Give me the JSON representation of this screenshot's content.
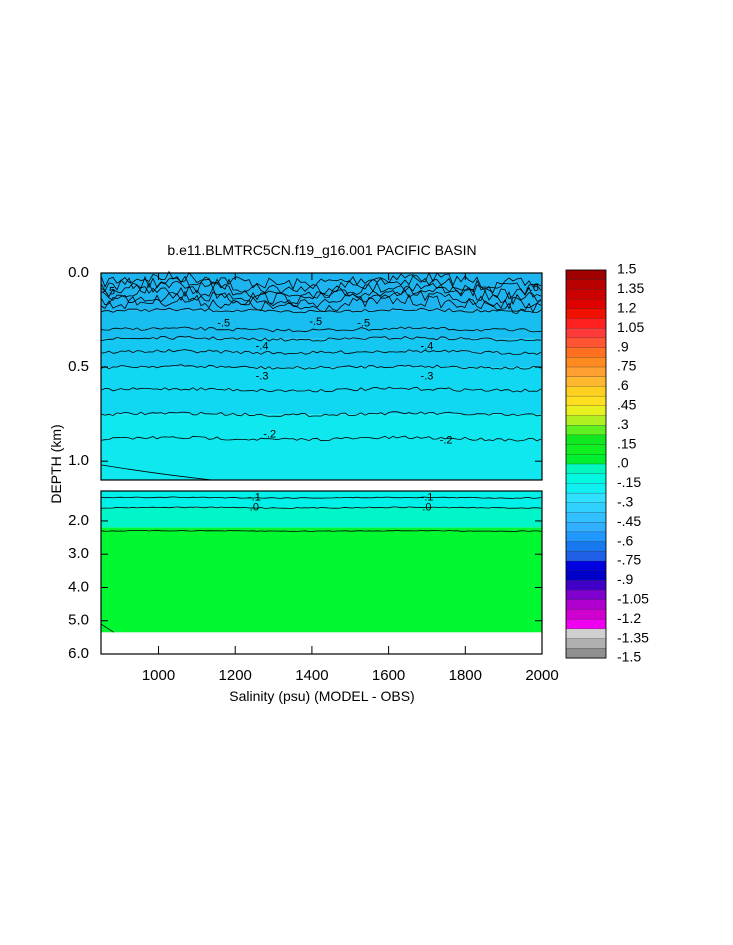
{
  "chart_data": {
    "type": "heatmap",
    "title": "b.e11.BLMTRC5CN.f19_g16.001 PACIFIC BASIN",
    "xlabel": "Salinity (psu) (MODEL - OBS)",
    "ylabel": "DEPTH (km)",
    "xlim": [
      850,
      2000
    ],
    "x_ticks": [
      "1000",
      "1200",
      "1400",
      "1600",
      "1800",
      "2000"
    ],
    "x_tick_values": [
      1000,
      1200,
      1400,
      1600,
      1800,
      2000
    ],
    "upper_panel": {
      "ylim": [
        0.0,
        1.1
      ],
      "y_ticks": [
        "0.0",
        "0.5",
        "1.0"
      ],
      "y_tick_values": [
        0.0,
        0.5,
        1.0
      ],
      "contour_labels": [
        "-.6",
        "-.5",
        "-.5",
        "-.5",
        "-.5",
        "-.4",
        "-.4",
        "-.3",
        "-.3",
        "-.2",
        "-.2"
      ]
    },
    "lower_panel": {
      "ylim": [
        1.1,
        6.0
      ],
      "y_ticks": [
        "2.0",
        "3.0",
        "4.0",
        "5.0",
        "6.0"
      ],
      "y_tick_values": [
        2.0,
        3.0,
        4.0,
        5.0,
        6.0
      ],
      "contour_labels": [
        "-.1",
        "-.1",
        ".0",
        ".0"
      ]
    },
    "layers": [
      {
        "depth_top": 0.0,
        "depth_bottom": 0.2,
        "value": -0.6
      },
      {
        "depth_top": 0.2,
        "depth_bottom": 0.35,
        "value": -0.5
      },
      {
        "depth_top": 0.35,
        "depth_bottom": 0.5,
        "value": -0.4
      },
      {
        "depth_top": 0.5,
        "depth_bottom": 0.75,
        "value": -0.3
      },
      {
        "depth_top": 0.75,
        "depth_bottom": 1.1,
        "value": -0.2
      },
      {
        "depth_top": 1.1,
        "depth_bottom": 1.6,
        "value": -0.15
      },
      {
        "depth_top": 1.6,
        "depth_bottom": 2.2,
        "value": -0.05
      },
      {
        "depth_top": 2.2,
        "depth_bottom": 5.35,
        "value": 0.05
      }
    ],
    "colorbar": {
      "labels": [
        "1.5",
        "1.35",
        "1.2",
        "1.05",
        ".9",
        ".75",
        ".6",
        ".45",
        ".3",
        ".15",
        ".0",
        "-.15",
        "-.3",
        "-.45",
        "-.6",
        "-.75",
        "-.9",
        "-1.05",
        "-1.2",
        "-1.35",
        "-1.5"
      ],
      "colors": [
        "#a00000",
        "#b80000",
        "#cc0000",
        "#e00000",
        "#f01000",
        "#ff2020",
        "#ff3a3a",
        "#ff5533",
        "#ff7020",
        "#ff8a20",
        "#ffa030",
        "#ffb830",
        "#ffd020",
        "#ffe020",
        "#e8f020",
        "#b0f020",
        "#60f020",
        "#10e820",
        "#10f020",
        "#00f030",
        "#00f8c0",
        "#00f8e0",
        "#10f0f0",
        "#30e0ff",
        "#30d0ff",
        "#30c0ff",
        "#30b0ff",
        "#2098ff",
        "#1878f0",
        "#2060e8",
        "#0000e0",
        "#0000c8",
        "#4000c8",
        "#8000d0",
        "#b000d0",
        "#d000d0",
        "#f000f0",
        "#d0d0d0",
        "#b0b0b0",
        "#909090"
      ]
    },
    "fill_colors": {
      "v-0.6": "#1eb4f0",
      "v-0.5": "#18bef0",
      "v-0.4": "#14c8f2",
      "v-0.3": "#10d8f2",
      "v-0.2": "#0ee8ee",
      "v-0.15": "#00f0ea",
      "v-0.05": "#00f5c8",
      "v0.05": "#00f830"
    }
  }
}
